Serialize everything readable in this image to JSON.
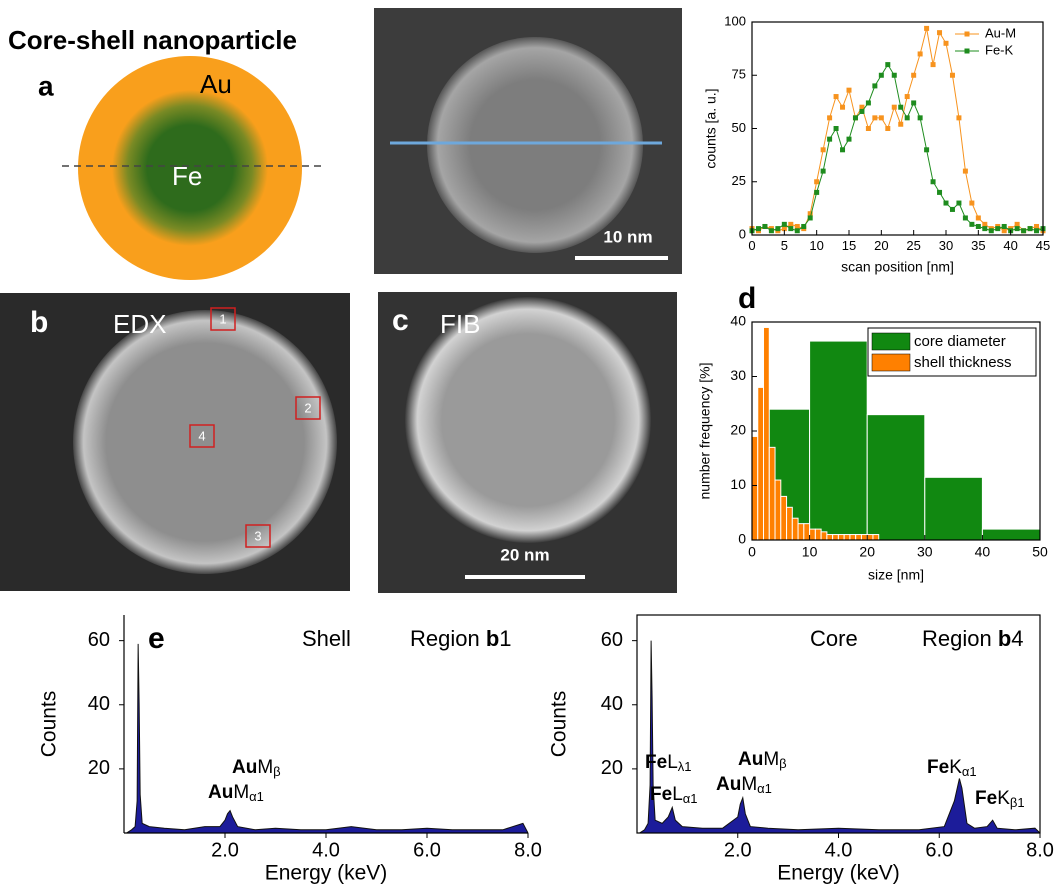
{
  "figure_title": "Core-shell nanoparticle",
  "panel_a": {
    "label": "a",
    "shell": "Au",
    "core": "Fe",
    "scale_bar": "10 nm"
  },
  "panel_b": {
    "label": "b",
    "mode": "EDX",
    "regions": [
      "1",
      "2",
      "3",
      "4"
    ]
  },
  "panel_c": {
    "label": "c",
    "mode": "FIB",
    "scale_bar": "20 nm"
  },
  "chart_data": [
    {
      "type": "line",
      "xlabel": "scan position [nm]",
      "ylabel": "counts [a. u.]",
      "x": [
        0,
        1,
        2,
        3,
        4,
        5,
        6,
        7,
        8,
        9,
        10,
        11,
        12,
        13,
        14,
        15,
        16,
        17,
        18,
        19,
        20,
        21,
        22,
        23,
        24,
        25,
        26,
        27,
        28,
        29,
        30,
        31,
        32,
        33,
        34,
        35,
        36,
        37,
        38,
        39,
        40,
        41,
        42,
        43,
        44,
        45
      ],
      "series": [
        {
          "name": "Au-M",
          "color": "#f7931e",
          "values": [
            3,
            2,
            4,
            3,
            2,
            3,
            5,
            4,
            3,
            10,
            25,
            40,
            55,
            65,
            60,
            68,
            55,
            60,
            50,
            55,
            55,
            50,
            60,
            52,
            65,
            75,
            85,
            97,
            80,
            95,
            90,
            75,
            55,
            30,
            15,
            8,
            5,
            3,
            4,
            2,
            3,
            5,
            2,
            3,
            4,
            2
          ]
        },
        {
          "name": "Fe-K",
          "color": "#1e8c1e",
          "values": [
            2,
            3,
            4,
            2,
            3,
            5,
            3,
            2,
            4,
            8,
            20,
            30,
            45,
            50,
            40,
            45,
            55,
            58,
            62,
            70,
            75,
            80,
            75,
            60,
            55,
            62,
            55,
            40,
            25,
            20,
            15,
            12,
            15,
            8,
            5,
            4,
            3,
            2,
            3,
            4,
            2,
            3,
            2,
            3,
            2,
            3
          ]
        }
      ],
      "xlim": [
        0,
        45
      ],
      "ylim": [
        0,
        100
      ],
      "xticks": [
        0,
        5,
        10,
        15,
        20,
        25,
        30,
        35,
        40,
        45
      ],
      "yticks": [
        0,
        25,
        50,
        75,
        100
      ],
      "legend": "upper right",
      "marker": "square"
    },
    {
      "type": "histogram",
      "label": "d",
      "xlabel": "size [nm]",
      "ylabel": "number frequency [%]",
      "series": [
        {
          "name": "core diameter",
          "color": "#118811",
          "bins": [
            1,
            10,
            20,
            30,
            40,
            50
          ],
          "values": [
            24,
            36.5,
            23,
            11.5,
            2
          ]
        },
        {
          "name": "shell thickness",
          "color": "#ff8000",
          "bins": [
            0,
            1,
            2,
            3,
            4,
            5,
            6,
            7,
            8,
            9,
            10,
            11,
            12,
            13,
            14,
            15,
            16,
            17,
            18,
            19,
            20,
            21,
            22
          ],
          "values": [
            19,
            28,
            39,
            17,
            11,
            8,
            6,
            4,
            3,
            3,
            2,
            2,
            1.5,
            1,
            1,
            1,
            1,
            1,
            1,
            1,
            1,
            1
          ]
        }
      ],
      "xlim": [
        0,
        50
      ],
      "ylim": [
        0,
        40
      ],
      "xticks": [
        0,
        10,
        20,
        30,
        40,
        50
      ],
      "yticks": [
        0,
        10,
        20,
        30,
        40
      ],
      "legend": "upper right"
    },
    {
      "type": "spectrum",
      "label": "e",
      "phase": "Shell",
      "region": {
        "word": "Region",
        "panel": "b",
        "number": "1"
      },
      "xlabel": "Energy (keV)",
      "ylabel": "Counts",
      "color": "#1c1c9a",
      "x": [
        0.05,
        0.15,
        0.22,
        0.26,
        0.28,
        0.3,
        0.32,
        0.36,
        0.5,
        0.8,
        1.2,
        1.6,
        1.9,
        2.0,
        2.05,
        2.1,
        2.15,
        2.25,
        2.6,
        3.0,
        3.5,
        4.0,
        4.5,
        5.0,
        5.5,
        6.0,
        6.5,
        7.0,
        7.5,
        7.9,
        8.0
      ],
      "values": [
        0,
        1,
        2,
        10,
        59,
        40,
        12,
        3,
        2,
        1.5,
        1,
        2,
        2,
        4,
        6,
        7,
        5,
        2,
        1,
        1.5,
        1,
        1,
        2,
        1,
        1,
        1.5,
        1,
        1,
        1,
        3,
        0
      ],
      "xlim": [
        0,
        8
      ],
      "ylim": [
        0,
        68
      ],
      "xticks": [
        {
          "value": 2,
          "label": "2.0"
        },
        {
          "value": 4,
          "label": "4.0"
        },
        {
          "value": 6,
          "label": "6.0"
        },
        {
          "value": 8,
          "label": "8.0"
        }
      ],
      "yticks": [
        20,
        40,
        60
      ],
      "annotations": [
        {
          "element": "Au",
          "line": "M",
          "sub": "β"
        },
        {
          "element": "Au",
          "line": "M",
          "sub": "α1"
        }
      ]
    },
    {
      "type": "spectrum",
      "phase": "Core",
      "region": {
        "word": "Region",
        "panel": "b",
        "number": "4"
      },
      "xlabel": "Energy (keV)",
      "ylabel": "Counts",
      "color": "#1c1c9a",
      "x": [
        0.05,
        0.15,
        0.22,
        0.26,
        0.28,
        0.3,
        0.32,
        0.36,
        0.5,
        0.62,
        0.7,
        0.76,
        0.9,
        1.3,
        1.7,
        2.0,
        2.05,
        2.1,
        2.15,
        2.25,
        2.6,
        3.2,
        4.0,
        4.8,
        5.6,
        6.1,
        6.3,
        6.4,
        6.45,
        6.55,
        6.7,
        6.95,
        7.06,
        7.15,
        7.5,
        7.9,
        8.0
      ],
      "values": [
        0,
        1,
        3,
        15,
        60,
        42,
        15,
        4,
        3,
        5,
        8,
        4,
        2,
        1.5,
        1.5,
        5,
        9,
        11,
        6,
        2,
        1.5,
        1,
        1.5,
        1,
        1,
        2,
        10,
        17,
        14,
        3,
        1.5,
        2,
        4,
        1.5,
        1,
        1.5,
        0
      ],
      "xlim": [
        0,
        8
      ],
      "ylim": [
        0,
        68
      ],
      "xticks": [
        {
          "value": 2,
          "label": "2.0"
        },
        {
          "value": 4,
          "label": "4.0"
        },
        {
          "value": 6,
          "label": "6.0"
        },
        {
          "value": 8,
          "label": "8.0"
        }
      ],
      "yticks": [
        20,
        40,
        60
      ],
      "annotations": [
        {
          "element": "Fe",
          "line": "L",
          "sub": "λ1"
        },
        {
          "element": "Fe",
          "line": "L",
          "sub": "α1"
        },
        {
          "element": "Au",
          "line": "M",
          "sub": "β"
        },
        {
          "element": "Au",
          "line": "M",
          "sub": "α1"
        },
        {
          "element": "Fe",
          "line": "K",
          "sub": "α1"
        },
        {
          "element": "Fe",
          "line": "K",
          "sub": "β1"
        }
      ]
    }
  ]
}
